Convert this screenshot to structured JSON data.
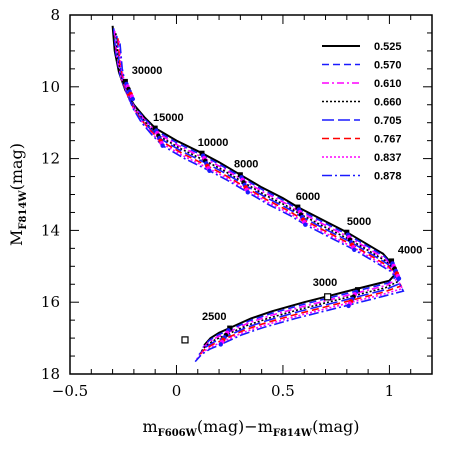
{
  "chart_data": {
    "type": "line",
    "xlabel": {
      "main": "m",
      "sub1": "F606W",
      "mid": "(mag)−m",
      "sub2": "F814W",
      "end": "(mag)"
    },
    "ylabel": {
      "main": "M",
      "sub": "F814W",
      "end": "(mag)"
    },
    "xlim": [
      -0.5,
      1.2
    ],
    "ylim": [
      18,
      8
    ],
    "y_inverted": true,
    "xticks": [
      -0.5,
      0,
      0.5,
      1
    ],
    "xtick_labels": [
      "−0.5",
      "0",
      "0.5",
      "1"
    ],
    "yticks": [
      8,
      10,
      12,
      14,
      16,
      18
    ],
    "ytick_labels": [
      "8",
      "10",
      "12",
      "14",
      "16",
      "18"
    ],
    "grid": false,
    "legend_position": "top-right",
    "series": [
      {
        "name": "0.525",
        "color": "#000000",
        "dash": "solid",
        "offset": 0
      },
      {
        "name": "0.570",
        "color": "#1a1aff",
        "dash": "dash",
        "offset": 1
      },
      {
        "name": "0.610",
        "color": "#ff00ff",
        "dash": "dashdot",
        "offset": 2
      },
      {
        "name": "0.660",
        "color": "#000000",
        "dash": "dot",
        "offset": 3
      },
      {
        "name": "0.705",
        "color": "#1a1aff",
        "dash": "longdash",
        "offset": 4
      },
      {
        "name": "0.767",
        "color": "#ff0000",
        "dash": "dash",
        "offset": 5
      },
      {
        "name": "0.837",
        "color": "#ff00ff",
        "dash": "dot",
        "offset": 6
      },
      {
        "name": "0.878",
        "color": "#1a1aff",
        "dash": "dashdotlong",
        "offset": 7
      }
    ],
    "base_curve": [
      [
        -0.3,
        8.3
      ],
      [
        -0.29,
        9.0
      ],
      [
        -0.27,
        9.6
      ],
      [
        -0.24,
        10.1
      ],
      [
        -0.2,
        10.5
      ],
      [
        -0.15,
        10.85
      ],
      [
        -0.1,
        11.15
      ],
      [
        0.0,
        11.5
      ],
      [
        0.12,
        11.85
      ],
      [
        0.2,
        12.1
      ],
      [
        0.3,
        12.45
      ],
      [
        0.4,
        12.8
      ],
      [
        0.5,
        13.1
      ],
      [
        0.57,
        13.35
      ],
      [
        0.7,
        13.75
      ],
      [
        0.8,
        14.05
      ],
      [
        0.9,
        14.4
      ],
      [
        0.97,
        14.65
      ],
      [
        1.0,
        14.85
      ],
      [
        1.03,
        15.2
      ],
      [
        1.0,
        15.4
      ],
      [
        0.9,
        15.55
      ],
      [
        0.8,
        15.7
      ],
      [
        0.7,
        15.85
      ],
      [
        0.6,
        16.0
      ],
      [
        0.45,
        16.25
      ],
      [
        0.35,
        16.45
      ],
      [
        0.25,
        16.72
      ],
      [
        0.2,
        16.85
      ],
      [
        0.16,
        17.0
      ],
      [
        0.13,
        17.2
      ]
    ],
    "offset_step": {
      "dx": 0.005,
      "dy": 0.07,
      "lower_dx": -0.006,
      "lower_dy": 0.065
    },
    "temperature_markers": [
      {
        "label": "30000",
        "x": -0.24,
        "y": 9.85
      },
      {
        "label": "15000",
        "x": -0.1,
        "y": 11.15
      },
      {
        "label": "10000",
        "x": 0.12,
        "y": 11.85
      },
      {
        "label": "8000",
        "x": 0.3,
        "y": 12.45
      },
      {
        "label": "6000",
        "x": 0.57,
        "y": 13.35
      },
      {
        "label": "5000",
        "x": 0.8,
        "y": 14.05
      },
      {
        "label": "4000",
        "x": 1.01,
        "y": 14.85
      },
      {
        "label": "3000",
        "x": 0.85,
        "y": 15.65
      },
      {
        "label": "2500",
        "x": 0.25,
        "y": 16.72
      }
    ],
    "temperature_labels_position": [
      {
        "label": "30000",
        "lx": -0.21,
        "ly": 9.65
      },
      {
        "label": "15000",
        "lx": -0.11,
        "ly": 10.95
      },
      {
        "label": "10000",
        "lx": 0.1,
        "ly": 11.65
      },
      {
        "label": "8000",
        "lx": 0.27,
        "ly": 12.25
      },
      {
        "label": "6000",
        "lx": 0.56,
        "ly": 13.15
      },
      {
        "label": "5000",
        "lx": 0.8,
        "ly": 13.85
      },
      {
        "label": "4000",
        "lx": 1.04,
        "ly": 14.65
      },
      {
        "label": "3000",
        "lx": 0.64,
        "ly": 15.55
      },
      {
        "label": "2500",
        "lx": 0.12,
        "ly": 16.5
      }
    ],
    "open_squares": [
      {
        "x": 0.04,
        "y": 17.05
      },
      {
        "x": 0.71,
        "y": 15.85
      }
    ]
  }
}
